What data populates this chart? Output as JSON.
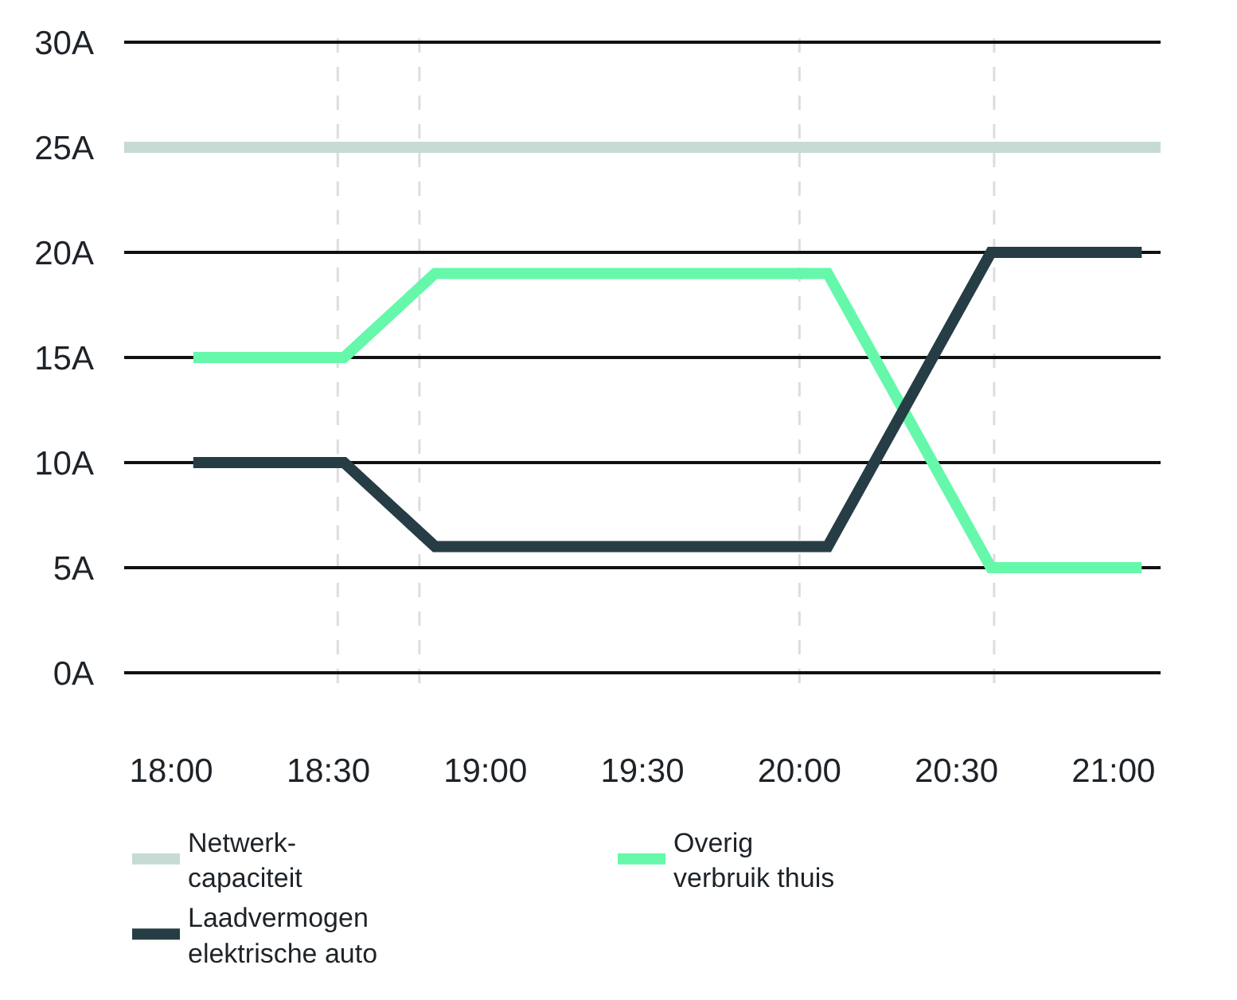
{
  "chart_data": {
    "type": "line",
    "xlim": [
      17.85,
      21.15
    ],
    "xticks": [
      {
        "value": 18,
        "label": "18:00"
      },
      {
        "value": 18.5,
        "label": "18:30"
      },
      {
        "value": 19,
        "label": "19:00"
      },
      {
        "value": 19.5,
        "label": "19:30"
      },
      {
        "value": 20,
        "label": "20:00"
      },
      {
        "value": 20.5,
        "label": "20:30"
      },
      {
        "value": 21,
        "label": "21:00"
      }
    ],
    "ylim": [
      -0.5,
      30.5
    ],
    "yticks": [
      {
        "value": 0,
        "label": "0A"
      },
      {
        "value": 5,
        "label": "5A"
      },
      {
        "value": 10,
        "label": "10A"
      },
      {
        "value": 15,
        "label": "15A"
      },
      {
        "value": 20,
        "label": "20A"
      },
      {
        "value": 25,
        "label": "25A"
      },
      {
        "value": 30,
        "label": "30A"
      }
    ],
    "grid": "y",
    "legend": "bottom",
    "marker": "none",
    "line_style": "solid",
    "series": [
      {
        "name": "Netwerk-\ncapaciteit",
        "color": "#c6dbd3",
        "x": [
          17.85,
          21.15
        ],
        "values": [
          25,
          25
        ]
      },
      {
        "name": "Overig\nverbruik thuis",
        "color": "#66f8aa",
        "x": [
          18.07,
          18.55,
          18.84,
          20.09,
          20.61,
          21.09
        ],
        "values": [
          15,
          15,
          19,
          19,
          5,
          5
        ]
      },
      {
        "name": "Laadvermogen\nelektrische auto",
        "color": "#263d45",
        "x": [
          18.07,
          18.55,
          18.84,
          20.09,
          20.61,
          21.09
        ],
        "values": [
          10,
          10,
          6,
          6,
          20,
          20
        ]
      }
    ],
    "ref_lines": [
      {
        "axis": "x",
        "value": 18.53,
        "color": "#dddddd",
        "line_style": "dashed"
      },
      {
        "axis": "x",
        "value": 18.79,
        "color": "#dddddd",
        "line_style": "dashed"
      },
      {
        "axis": "x",
        "value": 20.0,
        "color": "#dddddd",
        "line_style": "dashed"
      },
      {
        "axis": "x",
        "value": 20.62,
        "color": "#dddddd",
        "line_style": "dashed"
      }
    ]
  }
}
